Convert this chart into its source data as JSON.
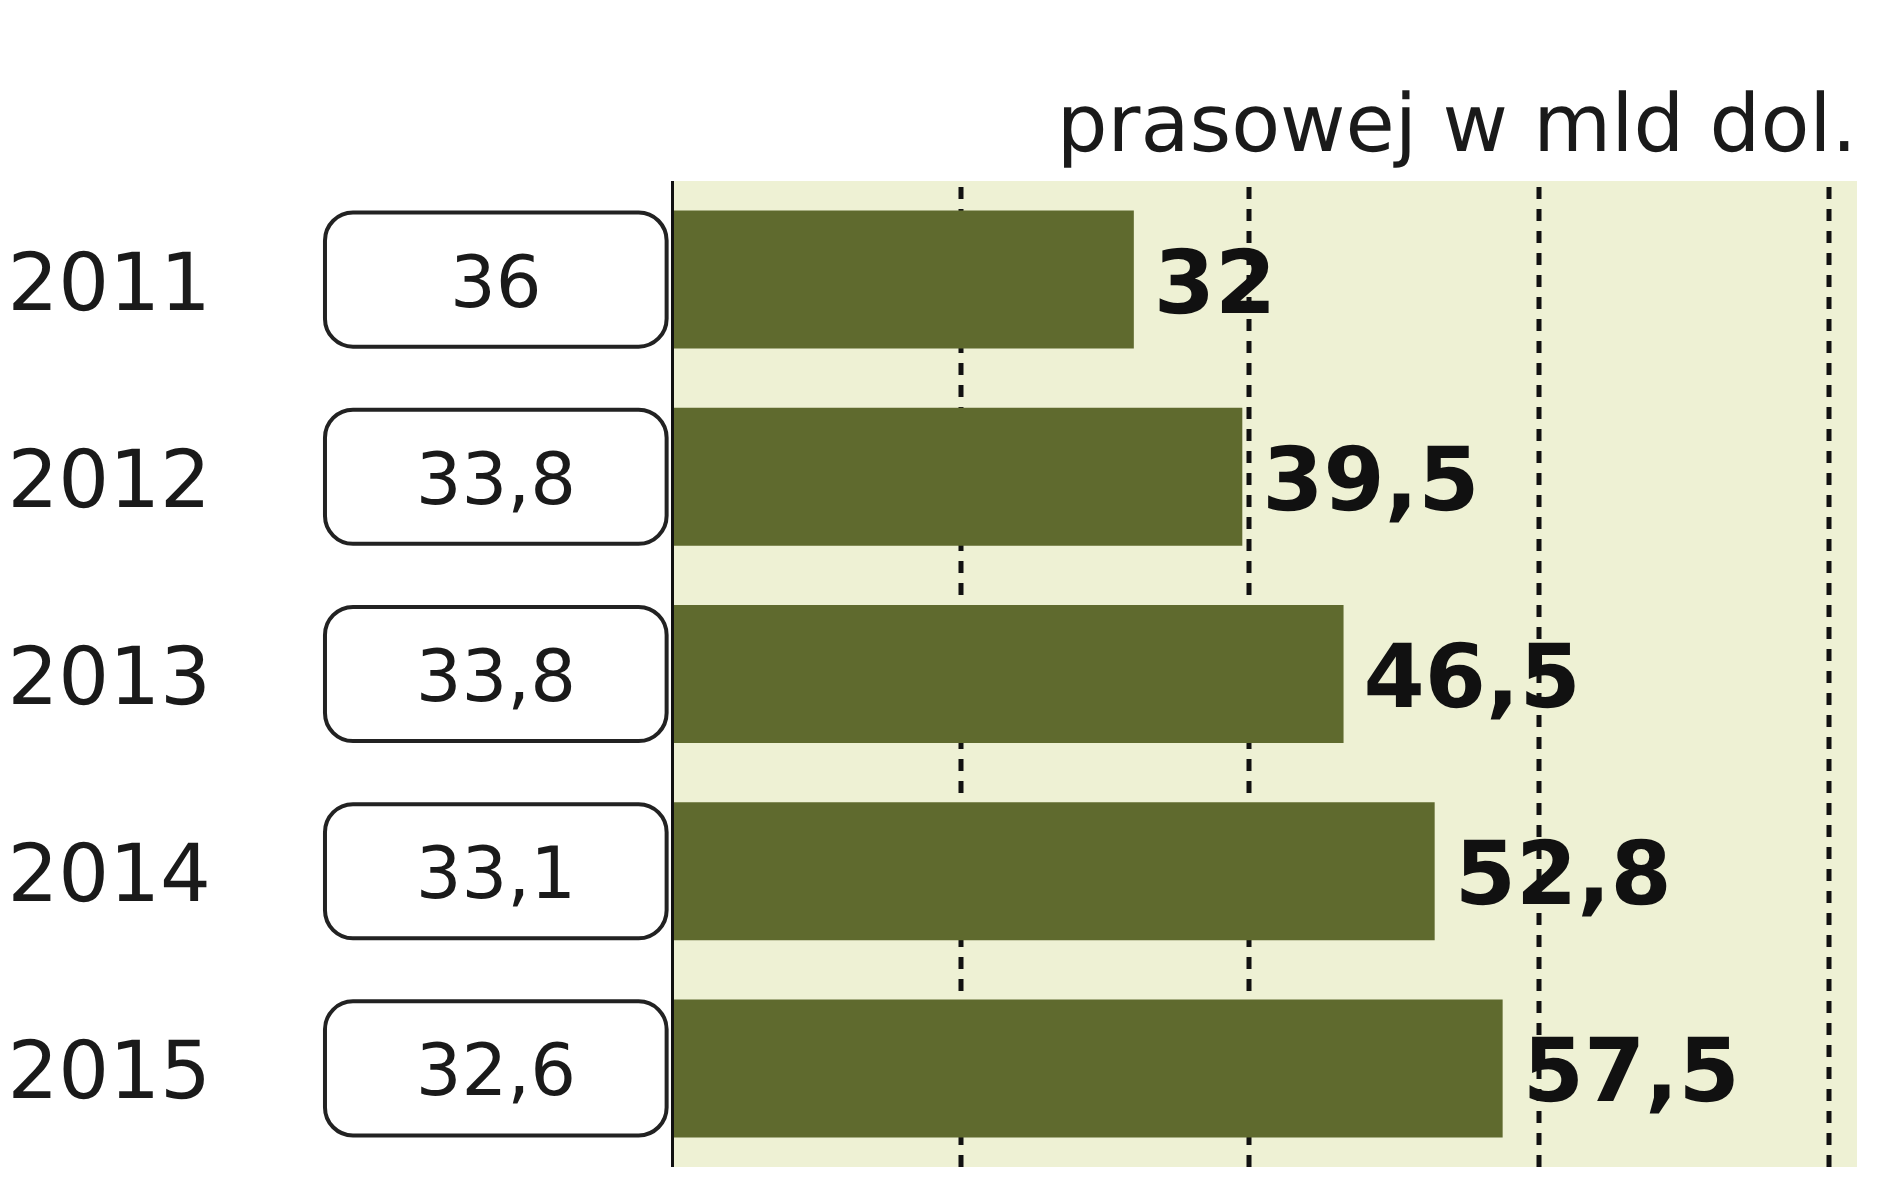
{
  "chart_data": {
    "type": "bar",
    "orientation": "horizontal",
    "title": "prasowej w mld dol.",
    "categories": [
      "2011",
      "2012",
      "2013",
      "2014",
      "2015"
    ],
    "series": [
      {
        "color": "#5f6a2e",
        "values": [
          32,
          39.5,
          46.5,
          52.8,
          57.5
        ],
        "value_labels": [
          "32",
          "39,5",
          "46,5",
          "52,8",
          "57,5"
        ]
      }
    ],
    "annotations": [
      "36",
      "33,8",
      "33,8",
      "33,1",
      "32,6"
    ],
    "xlim": [
      0,
      82
    ],
    "xticks": [
      {
        "value": 20,
        "label": null
      },
      {
        "value": 40,
        "label": null
      },
      {
        "value": 60,
        "label": null
      },
      {
        "value": 80,
        "label": null
      }
    ],
    "grid": "x",
    "tick_labels": "y"
  }
}
